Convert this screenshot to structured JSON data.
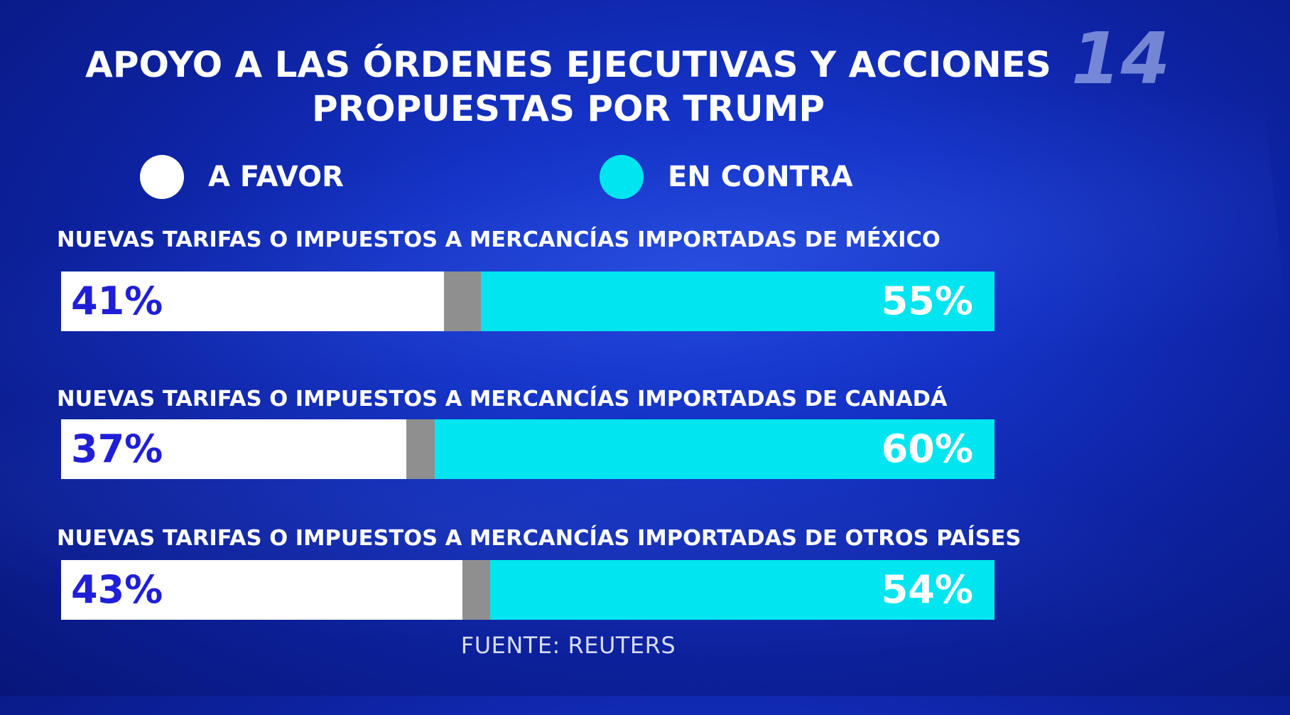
{
  "colors": {
    "a_favor": "#ffffff",
    "en_contra": "#00e5f0",
    "resto": "#8f8f8f",
    "favor_text": "#1f1fd8",
    "background": "#1432c4"
  },
  "logo": {
    "text": "14"
  },
  "chart_data": {
    "type": "bar",
    "orientation": "horizontal-stacked",
    "title": "APOYO A LAS ÓRDENES EJECUTIVAS Y ACCIONES PROPUESTAS POR TRUMP",
    "title_lines": [
      "APOYO A LAS ÓRDENES EJECUTIVAS Y ACCIONES",
      "PROPUESTAS POR TRUMP"
    ],
    "legend": [
      {
        "label": "A FAVOR",
        "color": "#ffffff"
      },
      {
        "label": "EN CONTRA",
        "color": "#00e5f0"
      }
    ],
    "categories": [
      "NUEVAS TARIFAS O IMPUESTOS A MERCANCÍAS IMPORTADAS DE MÉXICO",
      "NUEVAS TARIFAS O IMPUESTOS A MERCANCÍAS IMPORTADAS DE CANADÁ",
      "NUEVAS TARIFAS O IMPUESTOS A MERCANCÍAS IMPORTADAS DE OTROS PAÍSES"
    ],
    "series": [
      {
        "name": "A FAVOR",
        "values": [
          41,
          37,
          43
        ],
        "labels": [
          "41%",
          "37%",
          "43%"
        ]
      },
      {
        "name": "EN CONTRA",
        "values": [
          55,
          60,
          54
        ],
        "labels": [
          "55%",
          "60%",
          "54%"
        ]
      }
    ],
    "remainder_values": [
      4,
      3,
      3
    ],
    "xlim": [
      0,
      100
    ],
    "source": "FUENTE: REUTERS"
  }
}
